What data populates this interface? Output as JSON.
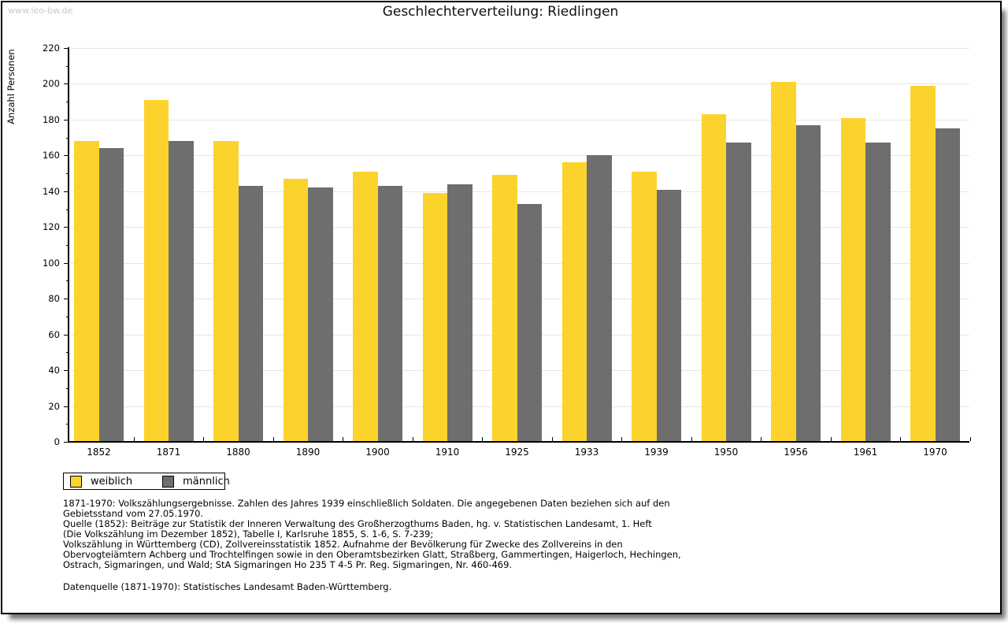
{
  "watermark": "www.leo-bw.de",
  "title": "Geschlechterverteilung: Riedlingen",
  "chart_data": {
    "type": "bar",
    "title": "Geschlechterverteilung: Riedlingen",
    "xlabel": "",
    "ylabel": "Anzahl Personen",
    "ylim": [
      0,
      220
    ],
    "ytick_step": 20,
    "ytick_minor_step": 10,
    "grid": true,
    "legend_position": "bottom-left",
    "categories": [
      "1852",
      "1871",
      "1880",
      "1890",
      "1900",
      "1910",
      "1925",
      "1933",
      "1939",
      "1950",
      "1956",
      "1961",
      "1970"
    ],
    "series": [
      {
        "name": "weiblich",
        "color": "#FCD32D",
        "values": [
          168,
          191,
          168,
          147,
          151,
          139,
          149,
          156,
          151,
          183,
          201,
          181,
          199
        ]
      },
      {
        "name": "männlich",
        "color": "#6E6E6E",
        "values": [
          164,
          168,
          143,
          142,
          143,
          144,
          133,
          160,
          141,
          167,
          177,
          167,
          175
        ]
      }
    ]
  },
  "colors": {
    "weiblich": "#FCD32D",
    "maennlich": "#6E6E6E",
    "gridline": "#E6E6E6",
    "axis": "#000000",
    "watermark": "#C9C9C9"
  },
  "footer": {
    "lines": [
      "1871-1970: Volkszählungsergebnisse. Zahlen des Jahres 1939 einschließlich Soldaten. Die angegebenen Daten beziehen sich auf den",
      "Gebietsstand vom 27.05.1970.",
      "Quelle (1852): Beiträge zur Statistik der Inneren Verwaltung des Großherzogthums Baden, hg. v. Statistischen Landesamt, 1. Heft",
      "(Die Volkszählung im Dezember 1852), Tabelle I, Karlsruhe 1855, S. 1-6, S. 7-239;",
      "Volkszählung in Württemberg (CD), Zollvereinsstatistik 1852. Aufnahme der Bevölkerung für Zwecke des Zollvereins in den",
      "Obervogteiämtern Achberg und Trochtelfingen sowie in den Oberamtsbezirken Glatt, Straßberg, Gammertingen, Haigerloch, Hechingen,",
      "Ostrach, Sigmaringen, und Wald; StA Sigmaringen Ho 235 T 4-5 Pr. Reg. Sigmaringen, Nr. 460-469."
    ],
    "datasource": "Datenquelle (1871-1970): Statistisches Landesamt Baden-Württemberg."
  }
}
